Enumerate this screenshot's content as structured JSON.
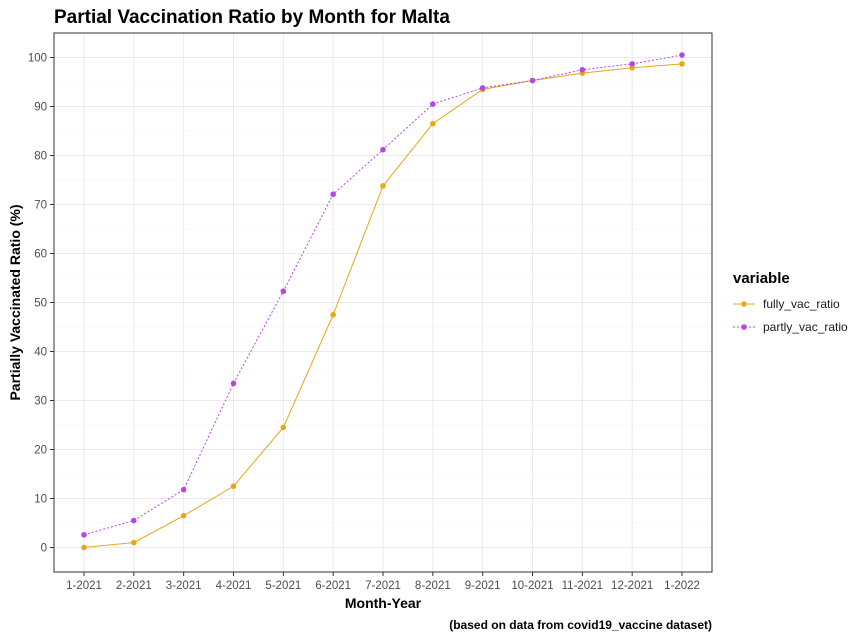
{
  "chart_data": {
    "type": "line",
    "title": "Partial Vaccination Ratio by Month for Malta",
    "xlabel": "Month-Year",
    "ylabel": "Partially Vaccinated Ratio (%)",
    "caption": "(based on data from covid19_vaccine dataset)",
    "categories": [
      "1-2021",
      "2-2021",
      "3-2021",
      "4-2021",
      "5-2021",
      "6-2021",
      "7-2021",
      "8-2021",
      "9-2021",
      "10-2021",
      "11-2021",
      "12-2021",
      "1-2022"
    ],
    "ylim": [
      -5,
      105
    ],
    "yticks": [
      0,
      10,
      20,
      30,
      40,
      50,
      60,
      70,
      80,
      90,
      100
    ],
    "grid": true,
    "legend": {
      "title": "variable",
      "position": "right"
    },
    "series": [
      {
        "name": "fully_vac_ratio",
        "color": "#e6a817",
        "dash": "solid",
        "values": [
          0.0,
          1.0,
          6.5,
          12.5,
          24.5,
          47.5,
          73.8,
          86.5,
          93.5,
          95.3,
          96.8,
          97.9,
          98.7
        ]
      },
      {
        "name": "partly_vac_ratio",
        "color": "#b845e8",
        "dash": "dotted",
        "values": [
          2.6,
          5.5,
          11.8,
          33.5,
          52.3,
          72.1,
          81.2,
          90.5,
          93.8,
          95.3,
          97.5,
          98.7,
          100.5
        ]
      }
    ]
  }
}
